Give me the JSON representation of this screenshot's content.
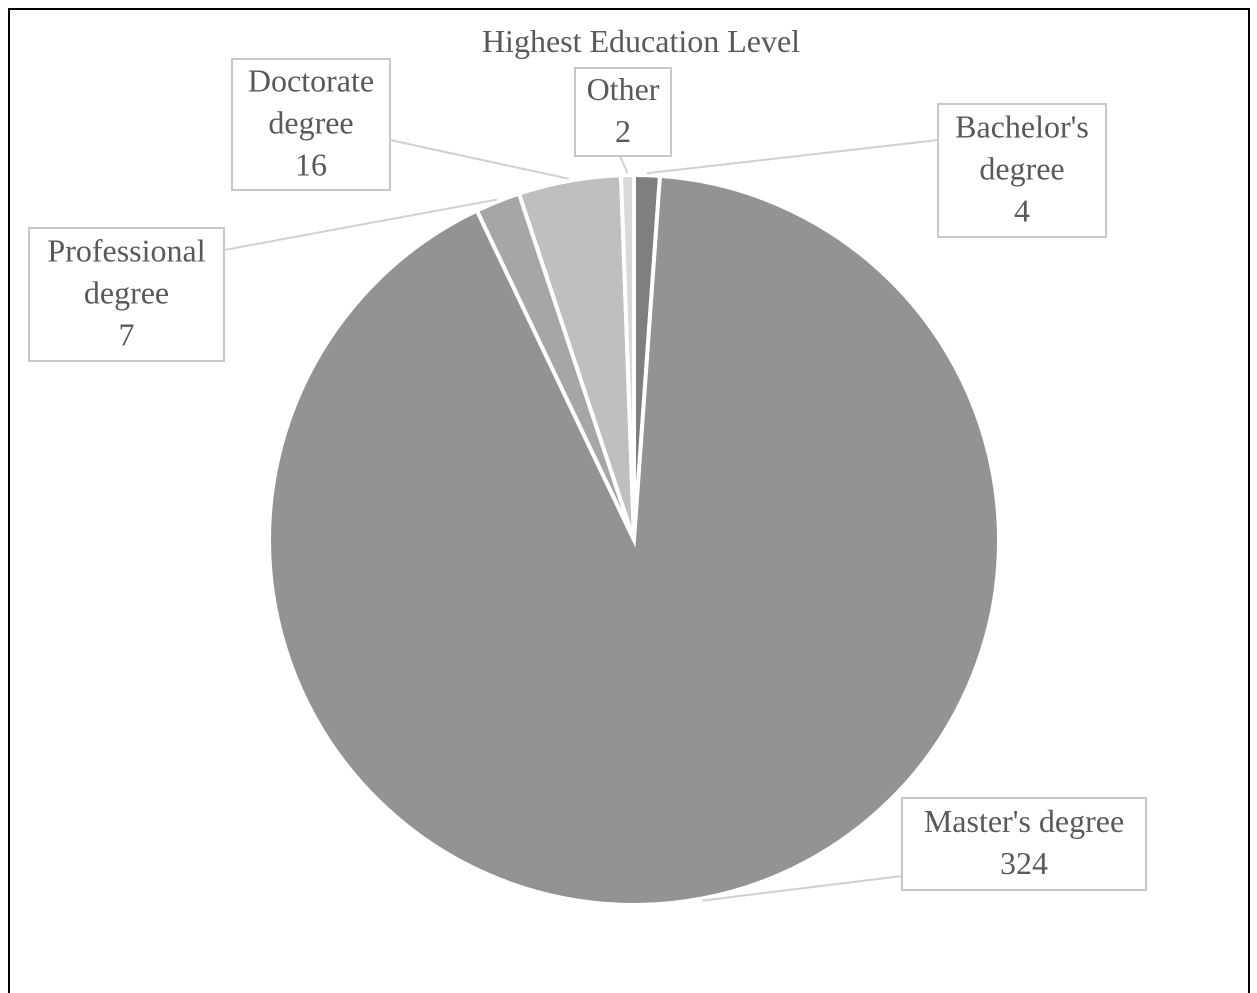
{
  "chart_data": {
    "type": "pie",
    "title": "Highest Education Level",
    "slices": [
      {
        "label": "Bachelor's degree",
        "label_lines": [
          "Bachelor's",
          "degree"
        ],
        "value": 4,
        "color": "#7f7f7f"
      },
      {
        "label": "Master's degree",
        "label_lines": [
          "Master's degree"
        ],
        "value": 324,
        "color": "#939393"
      },
      {
        "label": "Professional degree",
        "label_lines": [
          "Professional",
          "degree"
        ],
        "value": 7,
        "color": "#a6a6a6"
      },
      {
        "label": "Doctorate degree",
        "label_lines": [
          "Doctorate",
          "degree"
        ],
        "value": 16,
        "color": "#bfbfbf"
      },
      {
        "label": "Other",
        "label_lines": [
          "Other"
        ],
        "value": 2,
        "color": "#d9d9d9"
      }
    ],
    "legend": "none",
    "data_labels": "category and value, with leader lines"
  }
}
